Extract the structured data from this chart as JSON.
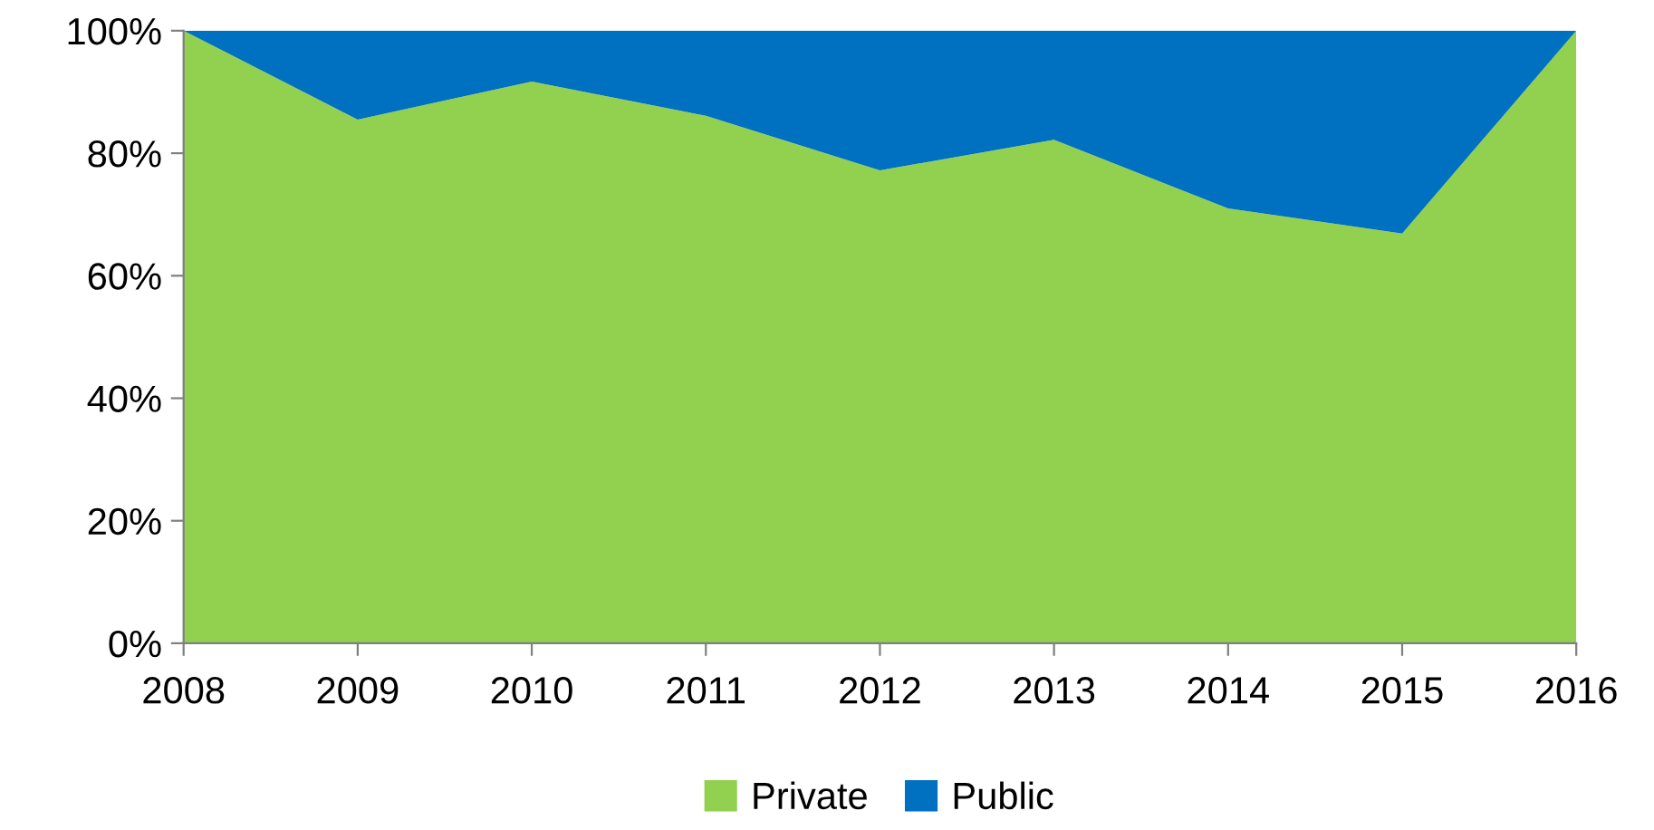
{
  "chart_data": {
    "type": "area",
    "stacked": true,
    "categories": [
      "2008",
      "2009",
      "2010",
      "2011",
      "2012",
      "2013",
      "2014",
      "2015",
      "2016"
    ],
    "series": [
      {
        "name": "Private",
        "color": "#92d050",
        "values": [
          100,
          85.5,
          91.7,
          86.1,
          77.2,
          82.2,
          71,
          66.9,
          100
        ]
      },
      {
        "name": "Public",
        "color": "#0070c0",
        "values": [
          0,
          14.5,
          8.3,
          13.9,
          22.8,
          17.8,
          29,
          33.1,
          0
        ]
      }
    ],
    "ylim": [
      0,
      100
    ],
    "yticks": [
      {
        "value": 0,
        "label": "0%"
      },
      {
        "value": 20,
        "label": "20%"
      },
      {
        "value": 40,
        "label": "40%"
      },
      {
        "value": 60,
        "label": "60%"
      },
      {
        "value": 80,
        "label": "80%"
      },
      {
        "value": 100,
        "label": "100%"
      }
    ],
    "grid": false,
    "legend": "bottom"
  }
}
